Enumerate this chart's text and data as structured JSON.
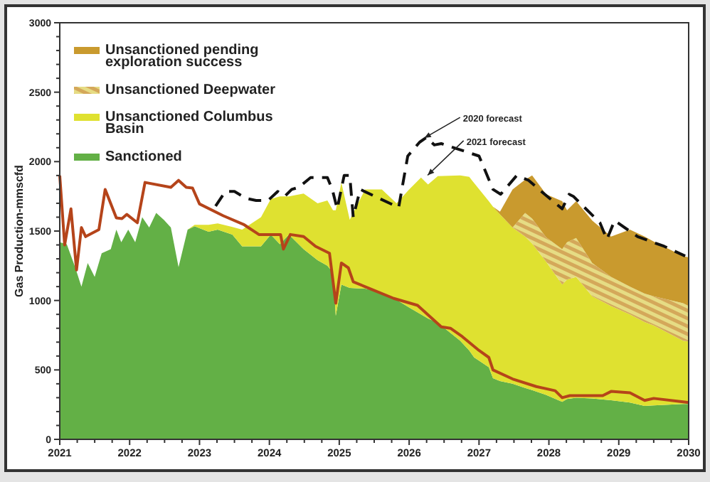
{
  "chart_data": {
    "type": "area",
    "stacked": true,
    "ylabel": "Gas Production-mmscfd",
    "legend": "top left",
    "xlim": [
      2021,
      2030
    ],
    "ylim": [
      0,
      3000
    ],
    "xticks": [
      2021,
      {
        "value": 2021.25,
        "label": null
      },
      {
        "value": 2021.5,
        "label": null
      },
      {
        "value": 2021.75,
        "label": null
      },
      2022,
      {
        "value": 2022.25,
        "label": null
      },
      {
        "value": 2022.5,
        "label": null
      },
      {
        "value": 2022.75,
        "label": null
      },
      2023,
      {
        "value": 2023.25,
        "label": null
      },
      {
        "value": 2023.5,
        "label": null
      },
      {
        "value": 2023.75,
        "label": null
      },
      2024,
      {
        "value": 2024.25,
        "label": null
      },
      {
        "value": 2024.5,
        "label": null
      },
      {
        "value": 2024.75,
        "label": null
      },
      2025,
      {
        "value": 2025.25,
        "label": null
      },
      {
        "value": 2025.5,
        "label": null
      },
      {
        "value": 2025.75,
        "label": null
      },
      2026,
      {
        "value": 2026.25,
        "label": null
      },
      {
        "value": 2026.5,
        "label": null
      },
      {
        "value": 2026.75,
        "label": null
      },
      2027,
      {
        "value": 2027.25,
        "label": null
      },
      {
        "value": 2027.5,
        "label": null
      },
      {
        "value": 2027.75,
        "label": null
      },
      2028,
      {
        "value": 2028.25,
        "label": null
      },
      {
        "value": 2028.5,
        "label": null
      },
      {
        "value": 2028.75,
        "label": null
      },
      2029,
      {
        "value": 2029.25,
        "label": null
      },
      {
        "value": 2029.5,
        "label": null
      },
      {
        "value": 2029.75,
        "label": null
      },
      2030
    ],
    "yticks": [
      0,
      {
        "value": 100,
        "label": null
      },
      {
        "value": 200,
        "label": null
      },
      {
        "value": 300,
        "label": null
      },
      {
        "value": 400,
        "label": null
      },
      500,
      {
        "value": 600,
        "label": null
      },
      {
        "value": 700,
        "label": null
      },
      {
        "value": 800,
        "label": null
      },
      {
        "value": 900,
        "label": null
      },
      1000,
      {
        "value": 1100,
        "label": null
      },
      {
        "value": 1200,
        "label": null
      },
      {
        "value": 1300,
        "label": null
      },
      {
        "value": 1400,
        "label": null
      },
      1500,
      {
        "value": 1600,
        "label": null
      },
      {
        "value": 1700,
        "label": null
      },
      {
        "value": 1800,
        "label": null
      },
      {
        "value": 1900,
        "label": null
      },
      2000,
      {
        "value": 2100,
        "label": null
      },
      {
        "value": 2200,
        "label": null
      },
      {
        "value": 2300,
        "label": null
      },
      {
        "value": 2400,
        "label": null
      },
      2500,
      {
        "value": 2600,
        "label": null
      },
      {
        "value": 2700,
        "label": null
      },
      {
        "value": 2800,
        "label": null
      },
      {
        "value": 2900,
        "label": null
      },
      3000
    ],
    "x": [
      2021.0,
      2021.1,
      2021.22,
      2021.31,
      2021.4,
      2021.5,
      2021.6,
      2021.73,
      2021.81,
      2021.88,
      2021.98,
      2022.08,
      2022.18,
      2022.28,
      2022.38,
      2022.49,
      2022.59,
      2022.7,
      2022.83,
      2022.93,
      2023.13,
      2023.26,
      2023.47,
      2023.61,
      2023.88,
      2024.02,
      2024.15,
      2024.28,
      2024.49,
      2024.69,
      2024.83,
      2024.91,
      2024.95,
      2025.03,
      2025.15,
      2025.37,
      2025.61,
      2025.82,
      2026.0,
      2026.17,
      2026.27,
      2026.41,
      2026.73,
      2026.86,
      2026.93,
      2027.14,
      2027.2,
      2027.3,
      2027.48,
      2027.66,
      2027.76,
      2027.96,
      2028.19,
      2028.26,
      2028.39,
      2028.62,
      2028.89,
      2029.16,
      2029.37,
      2029.5,
      2029.92,
      2030.0
    ],
    "series": [
      {
        "name": "Sanctioned",
        "color": "#63b046",
        "values": [
          1420,
          1405,
          1240,
          1100,
          1270,
          1170,
          1340,
          1370,
          1510,
          1420,
          1510,
          1420,
          1600,
          1525,
          1630,
          1580,
          1525,
          1240,
          1510,
          1535,
          1495,
          1510,
          1475,
          1390,
          1390,
          1475,
          1405,
          1475,
          1370,
          1290,
          1250,
          1200,
          890,
          1115,
          1090,
          1085,
          1060,
          1005,
          950,
          900,
          870,
          840,
          710,
          640,
          590,
          520,
          440,
          420,
          400,
          370,
          355,
          320,
          270,
          290,
          300,
          295,
          282,
          265,
          240,
          245,
          255,
          255
        ]
      },
      {
        "name": "Unsanctioned Columbus Basin",
        "color": "#dfe130",
        "values": [
          null,
          null,
          null,
          null,
          null,
          null,
          null,
          null,
          null,
          null,
          null,
          null,
          null,
          null,
          null,
          null,
          null,
          null,
          0,
          10,
          50,
          45,
          55,
          120,
          210,
          255,
          345,
          275,
          400,
          410,
          470,
          450,
          760,
          735,
          490,
          715,
          740,
          695,
          850,
          985,
          965,
          1055,
          1190,
          1250,
          1255,
          1195,
          1235,
          1200,
          1125,
          1090,
          1055,
          960,
          845,
          860,
          870,
          735,
          678,
          635,
          605,
          575,
          455,
          450
        ]
      },
      {
        "name": "Unsanctioned Deepwater",
        "color": "#d4a85a",
        "values": [
          null,
          null,
          null,
          null,
          null,
          null,
          null,
          null,
          null,
          null,
          null,
          null,
          null,
          null,
          null,
          null,
          null,
          null,
          null,
          null,
          null,
          null,
          null,
          null,
          null,
          null,
          null,
          null,
          null,
          null,
          null,
          null,
          null,
          null,
          null,
          null,
          null,
          null,
          null,
          null,
          null,
          null,
          null,
          null,
          null,
          null,
          null,
          0,
          0,
          170,
          180,
          175,
          255,
          270,
          280,
          240,
          210,
          200,
          205,
          210,
          270,
          255
        ]
      },
      {
        "name": "Unsanctioned pending exploration success",
        "color": "#c99a2e",
        "values": [
          null,
          null,
          null,
          null,
          null,
          null,
          null,
          null,
          null,
          null,
          null,
          null,
          null,
          null,
          null,
          null,
          null,
          null,
          null,
          null,
          null,
          null,
          null,
          null,
          null,
          null,
          null,
          null,
          null,
          null,
          null,
          null,
          null,
          null,
          null,
          null,
          null,
          null,
          null,
          null,
          null,
          null,
          null,
          null,
          null,
          null,
          0,
          20,
          275,
          240,
          310,
          310,
          345,
          230,
          265,
          305,
          290,
          410,
          410,
          395,
          340,
          350
        ]
      },
      {
        "type": "line",
        "color": "#b5441a",
        "line_style": "solid",
        "x": [
          2021.0,
          2021.07,
          2021.16,
          2021.24,
          2021.31,
          2021.37,
          2021.56,
          2021.65,
          2021.81,
          2021.89,
          2021.96,
          2022.11,
          2022.22,
          2022.59,
          2022.7,
          2022.81,
          2022.9,
          2023.0,
          2023.34,
          2023.64,
          2023.85,
          2024.16,
          2024.2,
          2024.3,
          2024.49,
          2024.66,
          2024.86,
          2024.95,
          2025.03,
          2025.13,
          2025.2,
          2025.44,
          2025.78,
          2026.12,
          2026.46,
          2026.59,
          2026.76,
          2027.0,
          2027.14,
          2027.2,
          2027.48,
          2027.82,
          2028.09,
          2028.19,
          2028.3,
          2028.77,
          2028.89,
          2029.16,
          2029.37,
          2029.5,
          2029.92,
          2030.0
        ],
        "values": [
          1900,
          1400,
          1660,
          1220,
          1525,
          1460,
          1510,
          1800,
          1595,
          1590,
          1620,
          1560,
          1850,
          1815,
          1865,
          1815,
          1810,
          1695,
          1610,
          1545,
          1475,
          1475,
          1370,
          1475,
          1460,
          1390,
          1340,
          980,
          1270,
          1235,
          1135,
          1085,
          1015,
          965,
          810,
          800,
          740,
          640,
          590,
          500,
          435,
          380,
          350,
          300,
          315,
          315,
          345,
          335,
          280,
          295,
          270,
          265
        ]
      },
      {
        "type": "line",
        "color": "#111111",
        "line_style": "dashed",
        "x": [
          2023.23,
          2023.37,
          2023.5,
          2023.67,
          2023.81,
          2023.98,
          2024.12,
          2024.22,
          2024.32,
          2024.42,
          2024.59,
          2024.83,
          2024.9,
          2024.97,
          2025.07,
          2025.15,
          2025.2,
          2025.3,
          2025.51,
          2025.85,
          2025.98,
          2026.15,
          2026.25,
          2026.36,
          2026.46,
          2027.0,
          2027.2,
          2027.31,
          2027.54,
          2027.71,
          2027.94,
          2028.19,
          2028.29,
          2028.35,
          2028.73,
          2028.83,
          2028.94,
          2029.27,
          2029.65,
          2029.95
        ],
        "values": [
          1680,
          1785,
          1785,
          1735,
          1720,
          1720,
          1785,
          1750,
          1800,
          1815,
          1885,
          1885,
          1800,
          1660,
          1900,
          1900,
          1600,
          1800,
          1750,
          1670,
          2040,
          2140,
          2175,
          2120,
          2130,
          2040,
          1800,
          1765,
          1900,
          1865,
          1765,
          1660,
          1765,
          1750,
          1560,
          1440,
          1575,
          1460,
          1390,
          1320
        ]
      }
    ],
    "annotations": [
      {
        "text": "2020 forecast",
        "x": 2026.2,
        "y": 2165
      },
      {
        "text": "2021 forecast",
        "x": 2026.25,
        "y": 1895
      }
    ]
  }
}
